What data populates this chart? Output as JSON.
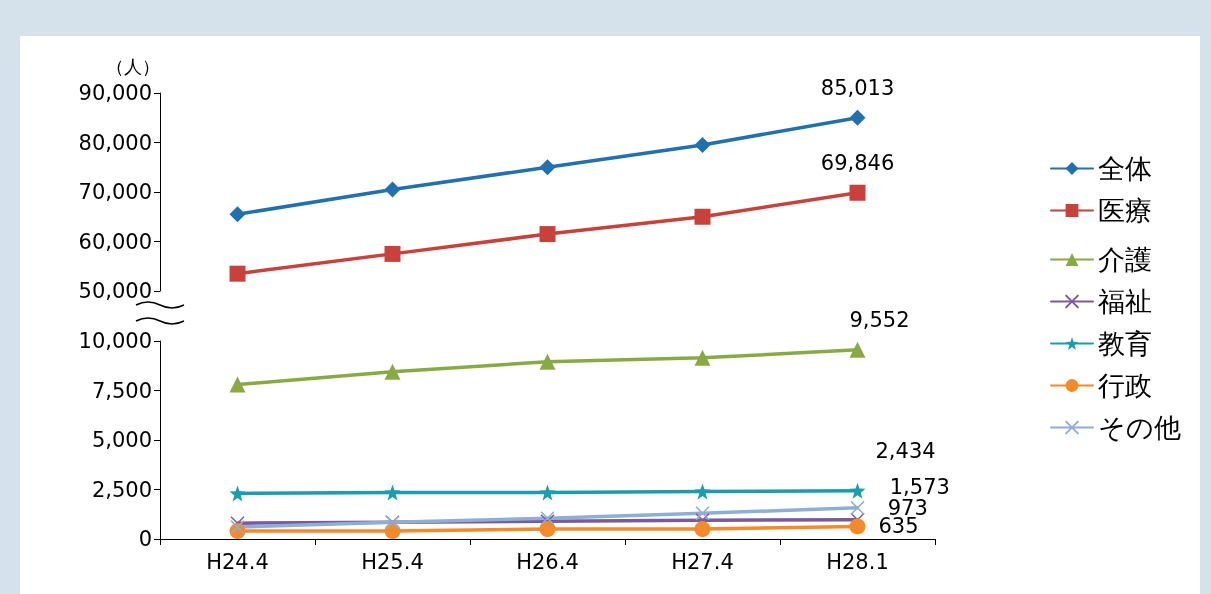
{
  "chart_data": [
    {
      "type": "line",
      "ylabel": "（人）",
      "categories": [
        null,
        null,
        null,
        null,
        null
      ],
      "tick_labels": "y",
      "ylim": [
        50000,
        90000
      ],
      "yticks": [
        {
          "value": 50000,
          "label": "50,000"
        },
        {
          "value": 60000,
          "label": "60,000"
        },
        {
          "value": 70000,
          "label": "70,000"
        },
        {
          "value": 80000,
          "label": "80,000"
        },
        {
          "value": 90000,
          "label": "90,000"
        }
      ],
      "legend": "right",
      "line_style": "solid",
      "series": [
        {
          "name": "全体",
          "color": "#2170b0",
          "marker": "diamond",
          "values": [
            65500,
            70500,
            75000,
            79500,
            85013
          ],
          "value_labels": [
            null,
            null,
            null,
            null,
            "85,013"
          ]
        },
        {
          "name": "医療",
          "color": "#c8413a",
          "marker": "square",
          "values": [
            53500,
            57500,
            61500,
            65000,
            69846
          ],
          "value_labels": [
            null,
            null,
            null,
            null,
            "69,846"
          ]
        }
      ]
    },
    {
      "type": "line",
      "categories": [
        "H24.4",
        "H25.4",
        "H26.4",
        "H27.4",
        "H28.1"
      ],
      "ylim": [
        0,
        10000
      ],
      "yticks": [
        {
          "value": 0,
          "label": "0"
        },
        {
          "value": 2500,
          "label": "2,500"
        },
        {
          "value": 5000,
          "label": "5,000"
        },
        {
          "value": 7500,
          "label": "7,500"
        },
        {
          "value": 10000,
          "label": "10,000"
        }
      ],
      "legend": "right",
      "line_style": "solid",
      "series": [
        {
          "name": "介護",
          "color": "#87aa45",
          "marker": "triangle",
          "values": [
            7800,
            8450,
            8950,
            9150,
            9552
          ],
          "value_labels": [
            null,
            null,
            null,
            null,
            "9,552"
          ]
        },
        {
          "name": "福祉",
          "color": "#7a5a9c",
          "marker": "cross",
          "values": [
            800,
            850,
            900,
            950,
            973
          ],
          "value_labels": [
            null,
            null,
            null,
            null,
            "973"
          ]
        },
        {
          "name": "教育",
          "color": "#1b9dad",
          "marker": "star",
          "values": [
            2300,
            2350,
            2350,
            2400,
            2434
          ],
          "value_labels": [
            null,
            null,
            null,
            null,
            "2,434"
          ]
        },
        {
          "name": "行政",
          "color": "#f58a2b",
          "marker": "circle",
          "values": [
            400,
            400,
            500,
            500,
            635
          ],
          "value_labels": [
            null,
            null,
            null,
            null,
            "635"
          ]
        },
        {
          "name": "その他",
          "color": "#8eaed6",
          "marker": "cross",
          "values": [
            600,
            850,
            1050,
            1300,
            1573
          ],
          "value_labels": [
            null,
            null,
            null,
            null,
            "1,573"
          ]
        }
      ]
    }
  ]
}
